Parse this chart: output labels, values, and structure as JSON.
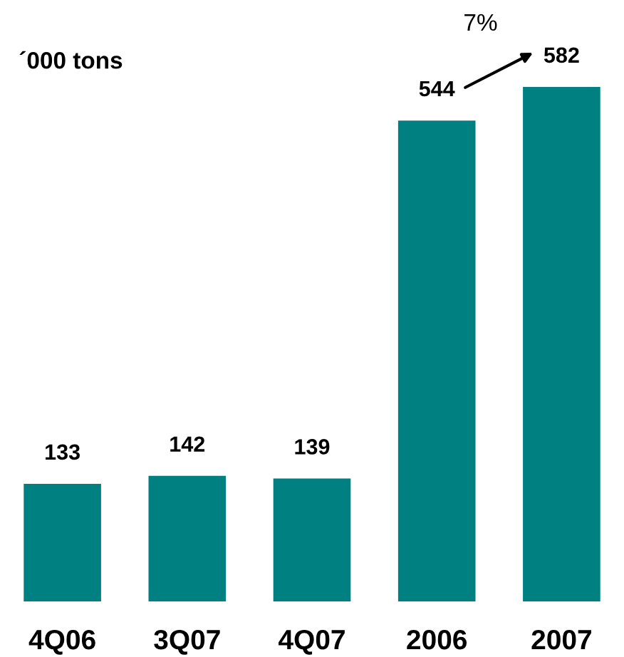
{
  "chart_data": {
    "type": "bar",
    "title": "´000 tons",
    "categories": [
      "4Q06",
      "3Q07",
      "4Q07",
      "2006",
      "2007"
    ],
    "values": [
      133,
      142,
      139,
      544,
      582
    ],
    "color": "#008080",
    "data_labels": true,
    "grid": false,
    "annotations": [
      "7%"
    ]
  }
}
